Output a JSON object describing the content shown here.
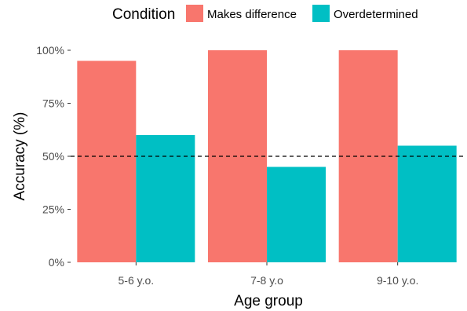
{
  "chart_data": {
    "type": "bar",
    "categories": [
      "5-6 y.o.",
      "7-8 y.o",
      "9-10 y.o."
    ],
    "series": [
      {
        "name": "Makes difference",
        "color": "#F8766D",
        "values": [
          95,
          100,
          100
        ]
      },
      {
        "name": "Overdetermined",
        "color": "#00BFC4",
        "values": [
          60,
          45,
          55
        ]
      }
    ],
    "xlabel": "Age group",
    "ylabel": "Accuracy (%)",
    "ylim": [
      0,
      100
    ],
    "yticks": [
      0,
      25,
      50,
      75,
      100
    ],
    "ytick_labels": [
      "0%",
      "25%",
      "50%",
      "75%",
      "100%"
    ],
    "reference_line": {
      "value": 50,
      "style": "dashed",
      "color": "#000000"
    },
    "legend": {
      "title": "Condition",
      "position": "top"
    },
    "grid": false
  }
}
